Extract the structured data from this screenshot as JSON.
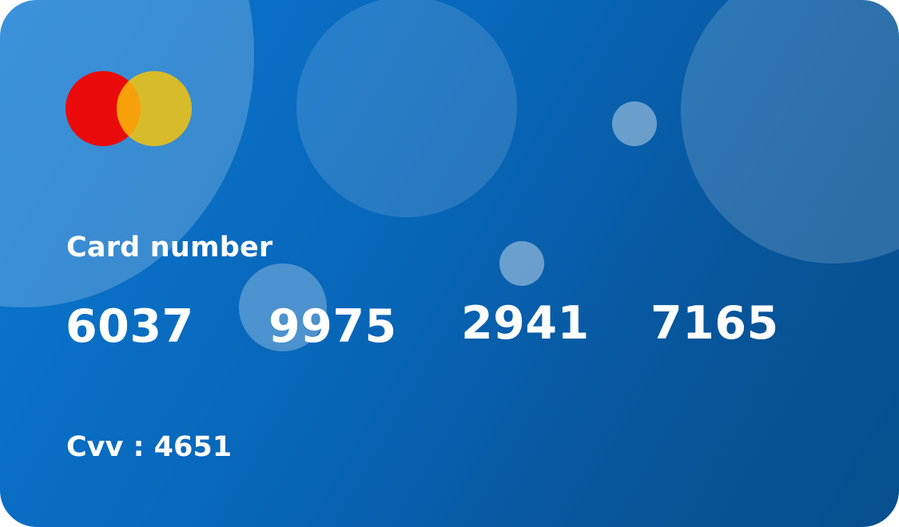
{
  "card": {
    "brand_icon": "mastercard-logo-icon",
    "colors": {
      "background_start": "#0a78d2",
      "background_end": "#064f8e",
      "logo_red": "#eb0a0a",
      "logo_yellow": "#d8bb2a",
      "logo_overlap": "#f7a00a"
    },
    "number_label": "Card number",
    "number_groups": [
      "6037",
      "9975",
      "2941",
      "7165"
    ],
    "cvv_text": "Cvv : 4651"
  }
}
